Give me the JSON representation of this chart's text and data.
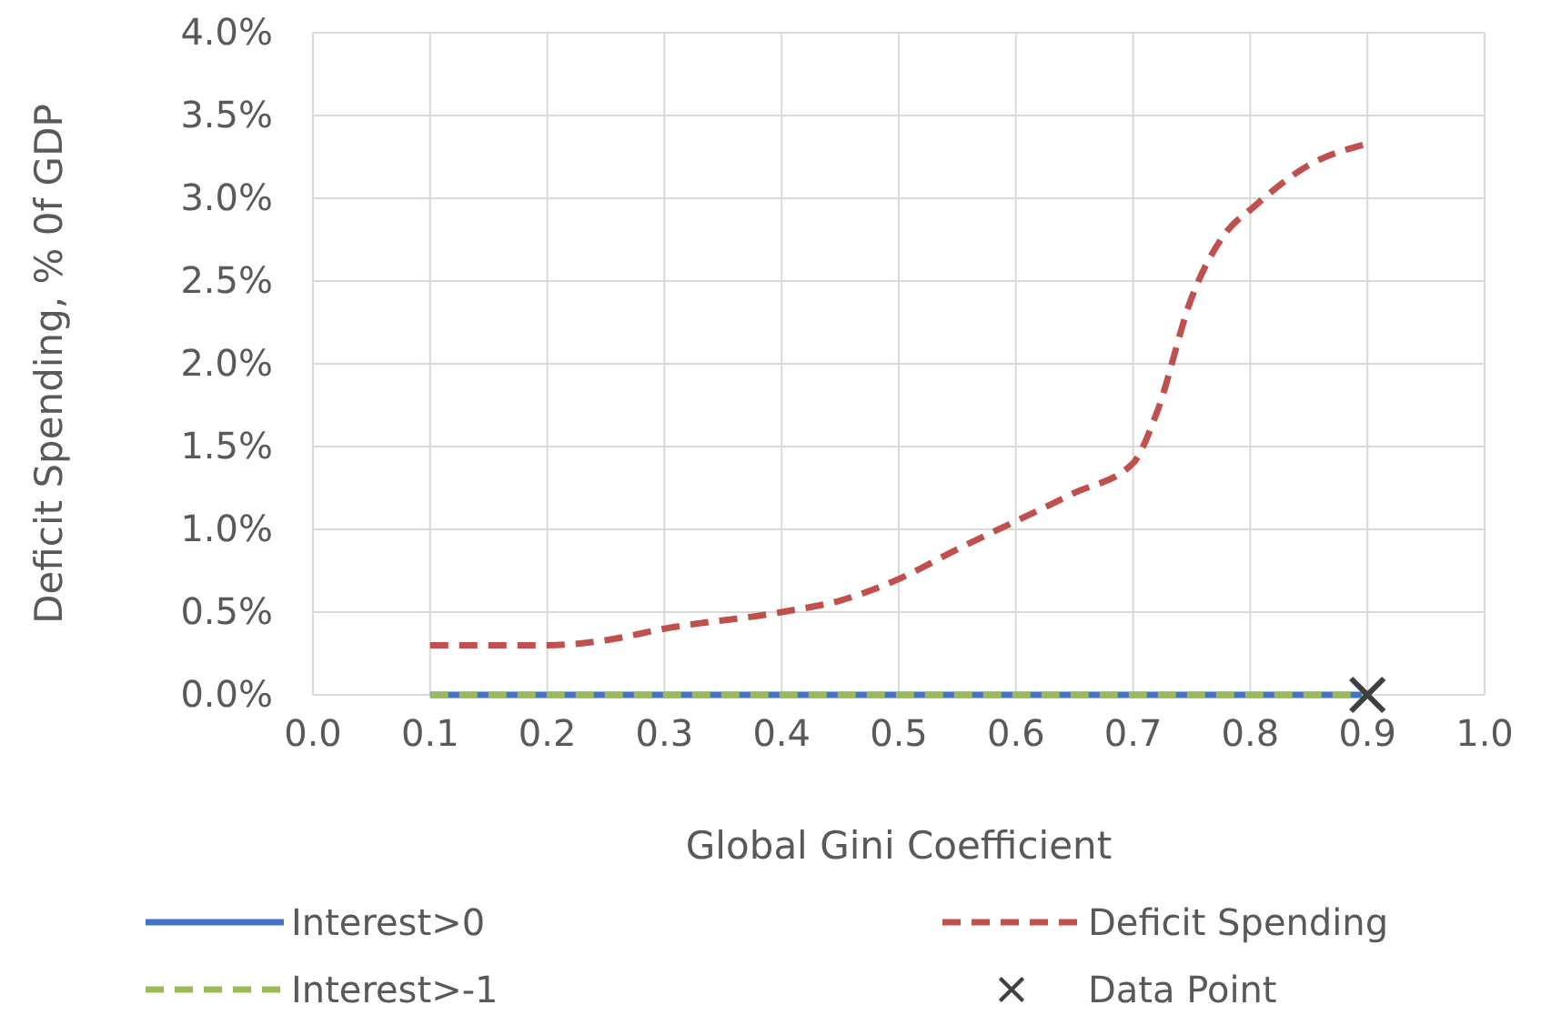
{
  "chart_data": {
    "type": "line",
    "xlabel": "Global Gini Coefficient",
    "ylabel": "Deficit Spending, % 0f GDP",
    "xlim": [
      0,
      1
    ],
    "xticks": [
      {
        "value": 0,
        "label": "0.0"
      },
      {
        "value": 0.1,
        "label": "0.1"
      },
      {
        "value": 0.2,
        "label": "0.2"
      },
      {
        "value": 0.3,
        "label": "0.3"
      },
      {
        "value": 0.4,
        "label": "0.4"
      },
      {
        "value": 0.5,
        "label": "0.5"
      },
      {
        "value": 0.6,
        "label": "0.6"
      },
      {
        "value": 0.7,
        "label": "0.7"
      },
      {
        "value": 0.8,
        "label": "0.8"
      },
      {
        "value": 0.9,
        "label": "0.9"
      },
      {
        "value": 1,
        "label": "1.0"
      }
    ],
    "ylim": [
      0,
      4
    ],
    "yticks": [
      {
        "value": 0,
        "label": "0.0%"
      },
      {
        "value": 0.5,
        "label": "0.5%"
      },
      {
        "value": 1,
        "label": "1.0%"
      },
      {
        "value": 1.5,
        "label": "1.5%"
      },
      {
        "value": 2,
        "label": "2.0%"
      },
      {
        "value": 2.5,
        "label": "2.5%"
      },
      {
        "value": 3,
        "label": "3.0%"
      },
      {
        "value": 3.5,
        "label": "3.5%"
      },
      {
        "value": 4,
        "label": "4.0%"
      }
    ],
    "grid": true,
    "legend": "bottom",
    "series": [
      {
        "name": "Interest>0",
        "color": "#4472c4",
        "line_style": "solid",
        "x": [
          0.1,
          0.9
        ],
        "values": [
          0,
          0
        ]
      },
      {
        "name": "Deficit Spending",
        "color": "#c0504d",
        "line_style": "dashed",
        "x": [
          0.1,
          0.2,
          0.25,
          0.3,
          0.4,
          0.45,
          0.5,
          0.55,
          0.6,
          0.65,
          0.7,
          0.72,
          0.75,
          0.78,
          0.8,
          0.85,
          0.9
        ],
        "values": [
          0.3,
          0.3,
          0.33,
          0.4,
          0.5,
          0.57,
          0.7,
          0.88,
          1.05,
          1.22,
          1.4,
          1.7,
          2.4,
          2.8,
          2.93,
          3.2,
          3.33
        ]
      },
      {
        "name": "Interest>-1",
        "color": "#9bbb59",
        "line_style": "dashed",
        "x": [
          0.1,
          0.9
        ],
        "values": [
          0,
          0
        ]
      },
      {
        "name": "Data Point",
        "type": "scatter",
        "marker": "cross",
        "color": "#404040",
        "x": [
          0.9
        ],
        "values": [
          0
        ]
      }
    ]
  }
}
